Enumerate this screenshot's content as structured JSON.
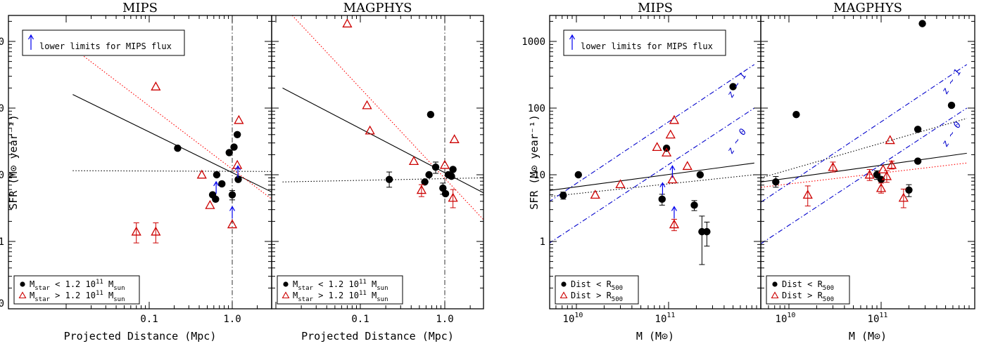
{
  "chart_data": [
    {
      "type": "scatter",
      "title": "MIPS",
      "xlabel": "Projected Distance (Mpc)",
      "ylabel": "SFR (M⊙ year⁻¹)",
      "xscale": "log",
      "yscale": "log",
      "xlim": [
        0.012,
        3.0
      ],
      "ylim": [
        0.2,
        2300
      ],
      "xticks": [
        {
          "v": 0.1,
          "label": "0.1"
        },
        {
          "v": 1.0,
          "label": "1.0"
        }
      ],
      "yticks": [
        {
          "v": 1,
          "label": "1"
        },
        {
          "v": 10,
          "label": "10"
        },
        {
          "v": 100,
          "label": "100"
        },
        {
          "v": 1000,
          "label": "1000"
        }
      ],
      "extra_ytick_label": "0",
      "note": "lower limits for MIPS flux",
      "legend": [
        "Mstar < 1.2 10^11 Msun",
        "Mstar > 1.2 10^11 Msun"
      ],
      "vline": 1.0,
      "lines": [
        {
          "style": "solid",
          "color": "#000000",
          "points": [
            [
              0.012,
              160
            ],
            [
              3.0,
              5.5
            ]
          ]
        },
        {
          "style": "dotted",
          "color": "#000000",
          "points": [
            [
              0.012,
              11.5
            ],
            [
              3.0,
              11.2
            ]
          ]
        },
        {
          "style": "dotted",
          "color": "#ff0000",
          "points": [
            [
              0.012,
              800
            ],
            [
              3.0,
              4.3
            ]
          ]
        }
      ],
      "series": [
        {
          "marker": "circle",
          "color": "#000000",
          "points": [
            {
              "x": 0.22,
              "y": 25
            },
            {
              "x": 0.65,
              "y": 10
            },
            {
              "x": 0.58,
              "y": 5
            },
            {
              "x": 0.63,
              "y": 4.3
            },
            {
              "x": 0.75,
              "y": 7.3
            },
            {
              "x": 0.92,
              "y": 21.5
            },
            {
              "x": 1.05,
              "y": 26
            },
            {
              "x": 1.15,
              "y": 40
            },
            {
              "x": 1.18,
              "y": 8.5
            },
            {
              "x": 1.0,
              "y": 5,
              "err": [
                0.8,
                0.8
              ]
            }
          ]
        },
        {
          "marker": "triangle",
          "color": "#cc0000",
          "points": [
            {
              "x": 0.12,
              "y": 210
            },
            {
              "x": 0.43,
              "y": 10
            },
            {
              "x": 0.54,
              "y": 3.5
            },
            {
              "x": 1.0,
              "y": 1.8
            },
            {
              "x": 1.15,
              "y": 14
            },
            {
              "x": 1.2,
              "y": 66
            },
            {
              "x": 0.07,
              "y": 1.4,
              "err": [
                0.45,
                0.5
              ]
            },
            {
              "x": 0.12,
              "y": 1.4,
              "err": [
                0.45,
                0.5
              ]
            }
          ]
        }
      ],
      "arrows": [
        {
          "x": 0.64,
          "y": 5.2
        },
        {
          "x": 1.0,
          "y": 2.2
        },
        {
          "x": 1.17,
          "y": 9.0
        }
      ]
    },
    {
      "type": "scatter",
      "title": "MAGPHYS",
      "xlabel": "Projected Distance (Mpc)",
      "xscale": "log",
      "yscale": "log",
      "xlim": [
        0.012,
        3.0
      ],
      "ylim": [
        0.2,
        2300
      ],
      "xticks": [
        {
          "v": 0.1,
          "label": "0.1"
        },
        {
          "v": 1.0,
          "label": "1.0"
        }
      ],
      "legend": [
        "Mstar < 1.2 10^11 Msun",
        "Mstar > 1.2 10^11 Msun"
      ],
      "vline": 1.0,
      "lines": [
        {
          "style": "solid",
          "color": "#000000",
          "points": [
            [
              0.012,
              200
            ],
            [
              3.0,
              5.2
            ]
          ]
        },
        {
          "style": "dotted",
          "color": "#000000",
          "points": [
            [
              0.012,
              7.8
            ],
            [
              3.0,
              9.0
            ]
          ]
        },
        {
          "style": "dotted",
          "color": "#ff0000",
          "points": [
            [
              0.012,
              3500
            ],
            [
              3.0,
              2.0
            ]
          ]
        }
      ],
      "series": [
        {
          "marker": "circle",
          "color": "#000000",
          "points": [
            {
              "x": 0.22,
              "y": 8.5,
              "err": [
                2.0,
                2.5
              ]
            },
            {
              "x": 0.58,
              "y": 7.8
            },
            {
              "x": 0.65,
              "y": 10
            },
            {
              "x": 0.68,
              "y": 80
            },
            {
              "x": 0.78,
              "y": 13,
              "err": [
                2.5,
                2.5
              ]
            },
            {
              "x": 0.95,
              "y": 6.3,
              "err": [
                1.2,
                1.2
              ]
            },
            {
              "x": 1.02,
              "y": 5.2
            },
            {
              "x": 1.1,
              "y": 10
            },
            {
              "x": 1.2,
              "y": 9.5
            },
            {
              "x": 1.25,
              "y": 12
            }
          ]
        },
        {
          "marker": "triangle",
          "color": "#cc0000",
          "points": [
            {
              "x": 0.07,
              "y": 1850
            },
            {
              "x": 0.12,
              "y": 110
            },
            {
              "x": 0.13,
              "y": 46
            },
            {
              "x": 0.43,
              "y": 16
            },
            {
              "x": 0.53,
              "y": 5.9,
              "err": [
                1.2,
                1.2
              ]
            },
            {
              "x": 1.0,
              "y": 14
            },
            {
              "x": 1.25,
              "y": 4.5,
              "err": [
                1.3,
                1.5
              ]
            },
            {
              "x": 1.3,
              "y": 34
            }
          ]
        }
      ]
    },
    {
      "type": "scatter",
      "title": "MIPS",
      "xlabel": "M (M⊙)",
      "ylabel": "SFR (M⊙ year⁻¹)",
      "xscale": "log",
      "yscale": "log",
      "xlim": [
        5000000000.0,
        850000000000.0
      ],
      "ylim": [
        0.1,
        2300
      ],
      "xticks": [
        {
          "v": 10000000000.0,
          "label": "10^10"
        },
        {
          "v": 100000000000.0,
          "label": "10^11"
        }
      ],
      "yticks": [
        {
          "v": 1,
          "label": "1"
        },
        {
          "v": 10,
          "label": "10"
        },
        {
          "v": 100,
          "label": "100"
        },
        {
          "v": 1000,
          "label": "1000"
        }
      ],
      "note": "lower limits for MIPS flux",
      "legend": [
        "Dist < R500",
        "Dist > R500"
      ],
      "zlabels": [
        "z ~ 1",
        "z ~ 0"
      ],
      "lines": [
        {
          "style": "solid",
          "color": "#000000",
          "points": [
            [
              5000000000.0,
              5.8
            ],
            [
              850000000000.0,
              15
            ]
          ]
        },
        {
          "style": "dotted",
          "color": "#000000",
          "points": [
            [
              5000000000.0,
              4.7
            ],
            [
              850000000000.0,
              10
            ]
          ]
        },
        {
          "style": "dashdot",
          "color": "#0000cc",
          "points": [
            [
              5000000000.0,
              3.9
            ],
            [
              850000000000.0,
              450
            ]
          ]
        },
        {
          "style": "dashdot",
          "color": "#0000cc",
          "points": [
            [
              5000000000.0,
              0.93
            ],
            [
              850000000000.0,
              100
            ]
          ]
        }
      ],
      "series": [
        {
          "marker": "circle",
          "color": "#000000",
          "points": [
            {
              "x": 7200000000.0,
              "y": 4.9,
              "err": [
                0.6,
                0.6
              ]
            },
            {
              "x": 10500000000.0,
              "y": 10
            },
            {
              "x": 85000000000.0,
              "y": 4.3,
              "err": [
                0.8,
                0.8
              ]
            },
            {
              "x": 95000000000.0,
              "y": 25
            },
            {
              "x": 190000000000.0,
              "y": 3.5,
              "err": [
                0.6,
                0.6
              ]
            },
            {
              "x": 220000000000.0,
              "y": 10
            },
            {
              "x": 230000000000.0,
              "y": 1.4,
              "err": [
                0.95,
                1.0
              ]
            },
            {
              "x": 260000000000.0,
              "y": 1.4,
              "err": [
                0.55,
                0.55
              ]
            },
            {
              "x": 500000000000.0,
              "y": 210
            }
          ]
        },
        {
          "marker": "triangle",
          "color": "#cc0000",
          "points": [
            {
              "x": 16000000000.0,
              "y": 5
            },
            {
              "x": 30000000000.0,
              "y": 7.2
            },
            {
              "x": 75000000000.0,
              "y": 26
            },
            {
              "x": 95000000000.0,
              "y": 21.5
            },
            {
              "x": 105000000000.0,
              "y": 40
            },
            {
              "x": 110000000000.0,
              "y": 8.5
            },
            {
              "x": 115000000000.0,
              "y": 66
            },
            {
              "x": 115000000000.0,
              "y": 1.8,
              "err": [
                0.35,
                0.35
              ]
            },
            {
              "x": 160000000000.0,
              "y": 13.5
            }
          ]
        }
      ],
      "arrows": [
        {
          "x": 86000000000.0,
          "y": 5.0
        },
        {
          "x": 110000000000.0,
          "y": 9.0
        },
        {
          "x": 115000000000.0,
          "y": 2.2
        }
      ]
    },
    {
      "type": "scatter",
      "title": "MAGPHYS",
      "xlabel": "M (M⊙)",
      "xscale": "log",
      "yscale": "log",
      "xlim": [
        5000000000.0,
        850000000000.0
      ],
      "ylim": [
        0.1,
        2300
      ],
      "xticks": [
        {
          "v": 10000000000.0,
          "label": "10^10"
        },
        {
          "v": 100000000000.0,
          "label": "10^11"
        }
      ],
      "legend": [
        "Dist < R500",
        "Dist > R500"
      ],
      "zlabels": [
        "z ~ 1",
        "z ~ 0"
      ],
      "lines": [
        {
          "style": "solid",
          "color": "#000000",
          "points": [
            [
              5000000000.0,
              7.8
            ],
            [
              850000000000.0,
              21
            ]
          ]
        },
        {
          "style": "dotted",
          "color": "#000000",
          "points": [
            [
              5000000000.0,
              9.0
            ],
            [
              850000000000.0,
              70
            ]
          ]
        },
        {
          "style": "dotted",
          "color": "#ff0000",
          "points": [
            [
              5000000000.0,
              6.5
            ],
            [
              850000000000.0,
              15
            ]
          ]
        },
        {
          "style": "dashdot",
          "color": "#0000cc",
          "points": [
            [
              5000000000.0,
              3.9
            ],
            [
              850000000000.0,
              450
            ]
          ]
        },
        {
          "style": "dashdot",
          "color": "#0000cc",
          "points": [
            [
              5000000000.0,
              0.93
            ],
            [
              850000000000.0,
              100
            ]
          ]
        }
      ],
      "series": [
        {
          "marker": "circle",
          "color": "#000000",
          "points": [
            {
              "x": 7200000000.0,
              "y": 7.8,
              "err": [
                1.3,
                1.6
              ]
            },
            {
              "x": 12000000000.0,
              "y": 80
            },
            {
              "x": 90000000000.0,
              "y": 10,
              "err": [
                1.5,
                1.5
              ]
            },
            {
              "x": 100000000000.0,
              "y": 8.5
            },
            {
              "x": 200000000000.0,
              "y": 5.9,
              "err": [
                1.2,
                1.2
              ]
            },
            {
              "x": 250000000000.0,
              "y": 16
            },
            {
              "x": 250000000000.0,
              "y": 48
            },
            {
              "x": 280000000000.0,
              "y": 1850
            },
            {
              "x": 580000000000.0,
              "y": 110
            }
          ]
        },
        {
          "marker": "triangle",
          "color": "#cc0000",
          "points": [
            {
              "x": 16000000000.0,
              "y": 5,
              "err": [
                1.6,
                1.8
              ]
            },
            {
              "x": 30000000000.0,
              "y": 13,
              "err": [
                2.0,
                2.5
              ]
            },
            {
              "x": 75000000000.0,
              "y": 10,
              "err": [
                1.8,
                2.0
              ]
            },
            {
              "x": 100000000000.0,
              "y": 6.3,
              "err": [
                1.0,
                1.2
              ]
            },
            {
              "x": 105000000000.0,
              "y": 12
            },
            {
              "x": 115000000000.0,
              "y": 9.5,
              "err": [
                1.8,
                2.0
              ]
            },
            {
              "x": 125000000000.0,
              "y": 33
            },
            {
              "x": 130000000000.0,
              "y": 14,
              "err": [
                1.8,
                2.0
              ]
            },
            {
              "x": 175000000000.0,
              "y": 4.5,
              "err": [
                1.3,
                1.6
              ]
            }
          ]
        }
      ]
    }
  ]
}
